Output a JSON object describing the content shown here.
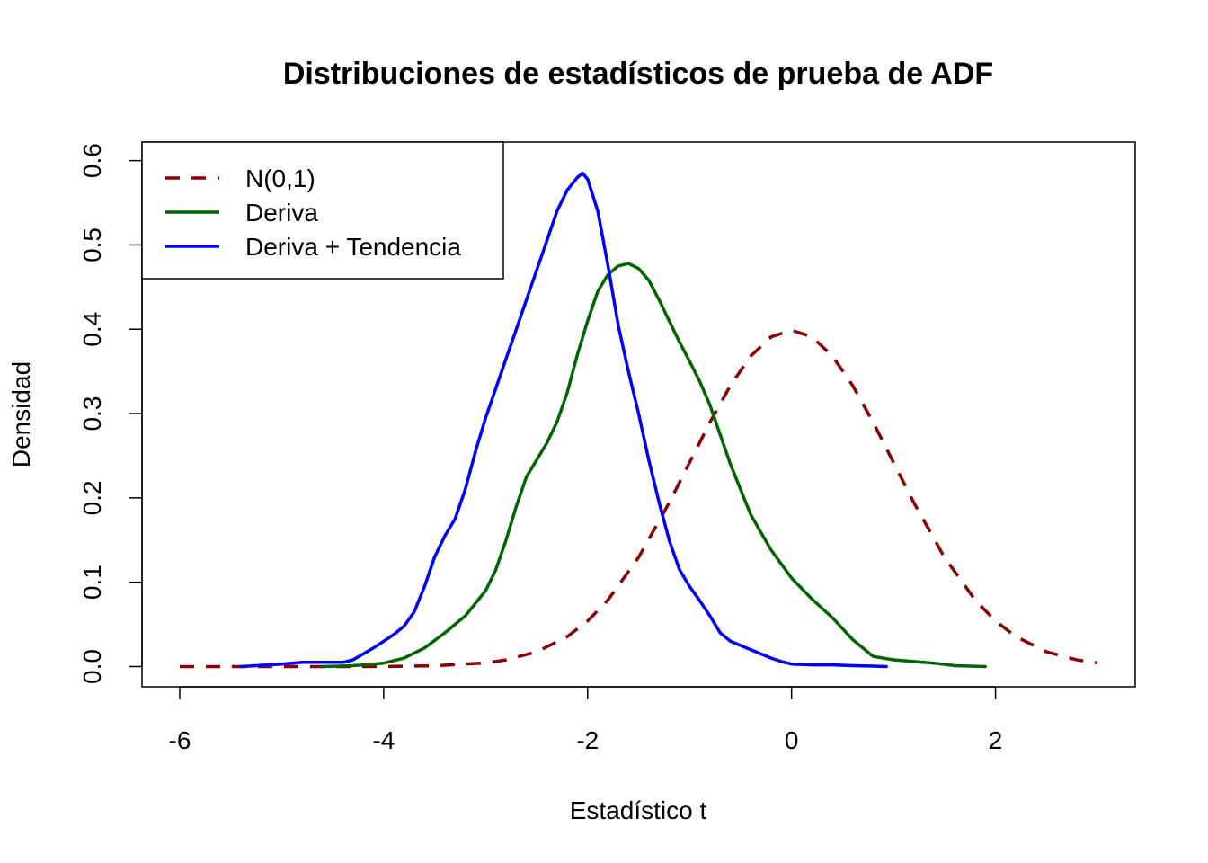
{
  "chart_data": {
    "type": "line",
    "title": "Distribuciones de estadísticos de prueba de ADF",
    "xlabel": "Estadístico t",
    "ylabel": "Densidad",
    "xlim": [
      -6.37,
      3.37
    ],
    "ylim": [
      -0.024,
      0.622
    ],
    "x_ticks": [
      -6,
      -4,
      -2,
      0,
      2
    ],
    "x_tick_labels": [
      "-6",
      "-4",
      "-2",
      "0",
      "2"
    ],
    "y_ticks": [
      0,
      0.1,
      0.2,
      0.3,
      0.4,
      0.5,
      0.6
    ],
    "y_tick_labels": [
      "0.0",
      "0.1",
      "0.2",
      "0.3",
      "0.4",
      "0.5",
      "0.6"
    ],
    "grid": false,
    "legend_position": "top-left",
    "series": [
      {
        "name": "N(0,1)",
        "color": "#8B0000",
        "dash": "dashed",
        "x": [
          -6,
          -5,
          -4.5,
          -4,
          -3.5,
          -3,
          -2.8,
          -2.5,
          -2.2,
          -2,
          -1.8,
          -1.5,
          -1.2,
          -1,
          -0.8,
          -0.6,
          -0.4,
          -0.2,
          0,
          0.2,
          0.4,
          0.6,
          0.8,
          1,
          1.2,
          1.5,
          1.8,
          2,
          2.2,
          2.5,
          2.8,
          3
        ],
        "y": [
          0,
          0,
          0,
          0.0001,
          0.0009,
          0.0044,
          0.0079,
          0.0175,
          0.0355,
          0.054,
          0.079,
          0.1295,
          0.1942,
          0.242,
          0.2897,
          0.3332,
          0.3683,
          0.391,
          0.3989,
          0.391,
          0.3683,
          0.3332,
          0.2897,
          0.242,
          0.1942,
          0.1295,
          0.079,
          0.054,
          0.0355,
          0.0175,
          0.0079,
          0.0044
        ]
      },
      {
        "name": "Deriva",
        "color": "#006400",
        "dash": "solid",
        "x": [
          -4.6,
          -4.3,
          -4.0,
          -3.8,
          -3.6,
          -3.4,
          -3.2,
          -3.0,
          -2.9,
          -2.8,
          -2.7,
          -2.6,
          -2.5,
          -2.4,
          -2.3,
          -2.2,
          -2.1,
          -2.0,
          -1.9,
          -1.8,
          -1.7,
          -1.6,
          -1.5,
          -1.4,
          -1.3,
          -1.2,
          -1.1,
          -1.0,
          -0.9,
          -0.8,
          -0.6,
          -0.4,
          -0.2,
          0.0,
          0.2,
          0.4,
          0.6,
          0.8,
          1.0,
          1.2,
          1.4,
          1.6,
          1.9
        ],
        "y": [
          0,
          0.001,
          0.004,
          0.01,
          0.022,
          0.04,
          0.06,
          0.09,
          0.115,
          0.15,
          0.19,
          0.225,
          0.245,
          0.265,
          0.29,
          0.325,
          0.37,
          0.41,
          0.445,
          0.465,
          0.475,
          0.478,
          0.472,
          0.458,
          0.435,
          0.41,
          0.385,
          0.362,
          0.338,
          0.31,
          0.24,
          0.18,
          0.138,
          0.105,
          0.08,
          0.058,
          0.032,
          0.012,
          0.008,
          0.006,
          0.004,
          0.001,
          0
        ]
      },
      {
        "name": "Deriva + Tendencia",
        "color": "#0000FF",
        "dash": "solid",
        "x": [
          -5.4,
          -5.0,
          -4.8,
          -4.6,
          -4.4,
          -4.3,
          -4.2,
          -4.1,
          -4.0,
          -3.9,
          -3.8,
          -3.7,
          -3.6,
          -3.5,
          -3.4,
          -3.3,
          -3.2,
          -3.1,
          -3.0,
          -2.9,
          -2.8,
          -2.7,
          -2.6,
          -2.5,
          -2.4,
          -2.3,
          -2.2,
          -2.1,
          -2.05,
          -2.0,
          -1.9,
          -1.8,
          -1.7,
          -1.6,
          -1.5,
          -1.4,
          -1.3,
          -1.2,
          -1.1,
          -1.0,
          -0.9,
          -0.8,
          -0.7,
          -0.6,
          -0.5,
          -0.4,
          -0.3,
          -0.2,
          -0.1,
          0.0,
          0.2,
          0.4,
          0.6,
          0.8,
          0.93
        ],
        "y": [
          0,
          0.003,
          0.005,
          0.005,
          0.005,
          0.008,
          0.015,
          0.022,
          0.03,
          0.038,
          0.048,
          0.065,
          0.095,
          0.13,
          0.155,
          0.175,
          0.21,
          0.255,
          0.295,
          0.33,
          0.365,
          0.4,
          0.435,
          0.47,
          0.505,
          0.54,
          0.565,
          0.58,
          0.585,
          0.578,
          0.54,
          0.475,
          0.405,
          0.35,
          0.3,
          0.245,
          0.195,
          0.15,
          0.115,
          0.095,
          0.078,
          0.06,
          0.04,
          0.03,
          0.025,
          0.02,
          0.015,
          0.01,
          0.006,
          0.003,
          0.002,
          0.002,
          0.001,
          0.0005,
          0
        ]
      }
    ]
  }
}
